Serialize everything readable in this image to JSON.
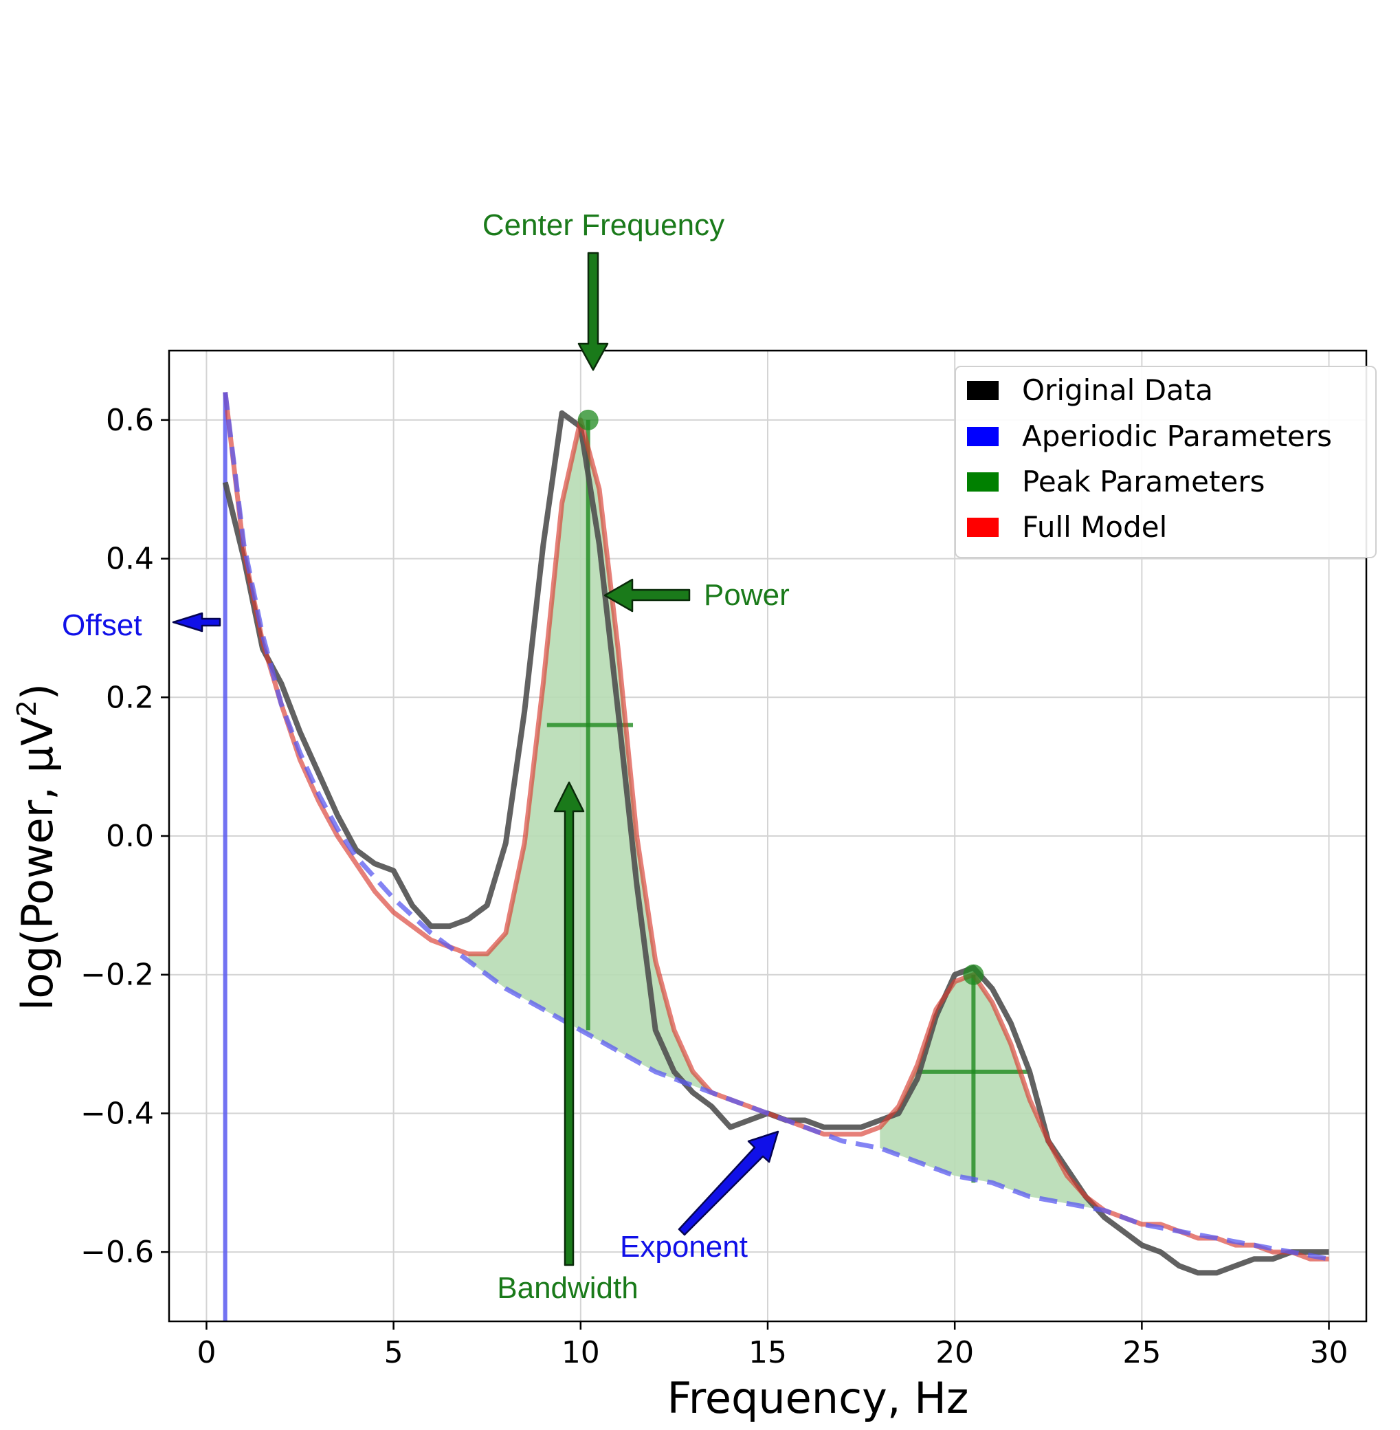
{
  "colors": {
    "original": "#505050",
    "aperiodic": "#5a5af0",
    "peak": "#1f8a1f",
    "peak_fill": "#b7dcb4",
    "full_model": "#d83a30",
    "annot_green": "#1a7a1a",
    "annot_blue": "#1010e8",
    "grid": "#d4d4d4"
  },
  "chart_data": {
    "type": "line",
    "xlabel": "Frequency, Hz",
    "ylabel": "log(Power, µV²)",
    "ylabel_main": "log(Power, µV",
    "ylabel_sup": "2",
    "ylabel_close": ")",
    "xlim": [
      -1,
      31
    ],
    "ylim": [
      -0.7,
      0.7
    ],
    "xticks": [
      0,
      5,
      10,
      15,
      20,
      25,
      30
    ],
    "xtick_labels": [
      "0",
      "5",
      "10",
      "15",
      "20",
      "25",
      "30"
    ],
    "yticks": [
      0.6,
      0.4,
      0.2,
      0.0,
      -0.2,
      -0.4,
      -0.6
    ],
    "ytick_labels": [
      "0.6",
      "0.4",
      "0.2",
      "0.0",
      "−0.2",
      "−0.4",
      "−0.6"
    ],
    "grid": true,
    "legend_position": "top-right",
    "legend": [
      {
        "label": "Original Data",
        "color": "#000000"
      },
      {
        "label": "Aperiodic Parameters",
        "color": "#0000ff"
      },
      {
        "label": "Peak Parameters",
        "color": "#008000"
      },
      {
        "label": "Full Model",
        "color": "#ff0000"
      }
    ],
    "series": [
      {
        "name": "Original Data",
        "x": [
          0.5,
          1.0,
          1.5,
          2.0,
          2.5,
          3.0,
          3.5,
          4.0,
          4.5,
          5.0,
          5.5,
          6.0,
          6.5,
          7.0,
          7.5,
          8.0,
          8.5,
          9.0,
          9.5,
          10.0,
          10.5,
          11.0,
          11.5,
          12.0,
          12.5,
          13.0,
          13.5,
          14.0,
          14.5,
          15.0,
          15.5,
          16.0,
          16.5,
          17.0,
          17.5,
          18.0,
          18.5,
          19.0,
          19.5,
          20.0,
          20.5,
          21.0,
          21.5,
          22.0,
          22.5,
          23.0,
          23.5,
          24.0,
          24.5,
          25.0,
          25.5,
          26.0,
          26.5,
          27.0,
          27.5,
          28.0,
          28.5,
          29.0,
          29.5,
          30.0
        ],
        "y": [
          0.51,
          0.4,
          0.27,
          0.22,
          0.15,
          0.09,
          0.03,
          -0.02,
          -0.04,
          -0.05,
          -0.1,
          -0.13,
          -0.13,
          -0.12,
          -0.1,
          -0.01,
          0.18,
          0.42,
          0.61,
          0.59,
          0.42,
          0.18,
          -0.07,
          -0.28,
          -0.34,
          -0.37,
          -0.39,
          -0.42,
          -0.41,
          -0.4,
          -0.41,
          -0.41,
          -0.42,
          -0.42,
          -0.42,
          -0.41,
          -0.4,
          -0.35,
          -0.26,
          -0.2,
          -0.19,
          -0.22,
          -0.27,
          -0.34,
          -0.44,
          -0.48,
          -0.52,
          -0.55,
          -0.57,
          -0.59,
          -0.6,
          -0.62,
          -0.63,
          -0.63,
          -0.62,
          -0.61,
          -0.61,
          -0.6,
          -0.6,
          -0.6
        ]
      },
      {
        "name": "Full Model",
        "x": [
          0.5,
          1.0,
          1.5,
          2.0,
          2.5,
          3.0,
          3.5,
          4.0,
          4.5,
          5.0,
          5.5,
          6.0,
          6.5,
          7.0,
          7.5,
          8.0,
          8.5,
          9.0,
          9.5,
          10.0,
          10.5,
          11.0,
          11.5,
          12.0,
          12.5,
          13.0,
          13.5,
          14.0,
          14.5,
          15.0,
          15.5,
          16.0,
          16.5,
          17.0,
          17.5,
          18.0,
          18.5,
          19.0,
          19.5,
          20.0,
          20.5,
          21.0,
          21.5,
          22.0,
          22.5,
          23.0,
          23.5,
          24.0,
          24.5,
          25.0,
          25.5,
          26.0,
          26.5,
          27.0,
          27.5,
          28.0,
          28.5,
          29.0,
          29.5,
          30.0
        ],
        "y": [
          0.64,
          0.41,
          0.28,
          0.19,
          0.11,
          0.05,
          0.0,
          -0.04,
          -0.08,
          -0.11,
          -0.13,
          -0.15,
          -0.16,
          -0.17,
          -0.17,
          -0.14,
          -0.01,
          0.22,
          0.48,
          0.6,
          0.5,
          0.27,
          0.0,
          -0.18,
          -0.28,
          -0.34,
          -0.37,
          -0.38,
          -0.39,
          -0.4,
          -0.41,
          -0.42,
          -0.43,
          -0.43,
          -0.43,
          -0.42,
          -0.39,
          -0.33,
          -0.25,
          -0.21,
          -0.2,
          -0.24,
          -0.3,
          -0.38,
          -0.44,
          -0.49,
          -0.52,
          -0.54,
          -0.55,
          -0.56,
          -0.56,
          -0.57,
          -0.58,
          -0.58,
          -0.59,
          -0.59,
          -0.6,
          -0.6,
          -0.61,
          -0.61
        ]
      },
      {
        "name": "Aperiodic Parameters",
        "offset": 0.64,
        "offset_freq": 0.5,
        "x": [
          0.5,
          1.0,
          1.5,
          2.0,
          2.5,
          3.0,
          3.5,
          4.0,
          5.0,
          6.0,
          7.0,
          8.0,
          9.0,
          10.0,
          11.0,
          12.0,
          13.0,
          14.0,
          15.0,
          16.0,
          17.0,
          18.0,
          19.0,
          20.0,
          21.0,
          22.0,
          23.0,
          24.0,
          25.0,
          26.0,
          27.0,
          28.0,
          29.0,
          30.0
        ],
        "y": [
          0.64,
          0.42,
          0.29,
          0.19,
          0.12,
          0.06,
          0.01,
          -0.03,
          -0.09,
          -0.14,
          -0.18,
          -0.22,
          -0.25,
          -0.28,
          -0.31,
          -0.34,
          -0.36,
          -0.38,
          -0.4,
          -0.42,
          -0.44,
          -0.45,
          -0.47,
          -0.49,
          -0.5,
          -0.52,
          -0.53,
          -0.54,
          -0.56,
          -0.57,
          -0.58,
          -0.59,
          -0.6,
          -0.61
        ]
      }
    ],
    "peaks": [
      {
        "center_frequency": 10.2,
        "power": 0.6,
        "base": -0.28,
        "bandwidth_range": [
          9.1,
          11.4
        ],
        "half_height": 0.16
      },
      {
        "center_frequency": 20.5,
        "power": -0.2,
        "base": -0.5,
        "bandwidth_range": [
          19.0,
          22.0
        ],
        "half_height": -0.34
      }
    ],
    "annotations": {
      "center_frequency": "Center Frequency",
      "power": "Power",
      "bandwidth": "Bandwidth",
      "offset": "Offset",
      "exponent": "Exponent"
    }
  }
}
